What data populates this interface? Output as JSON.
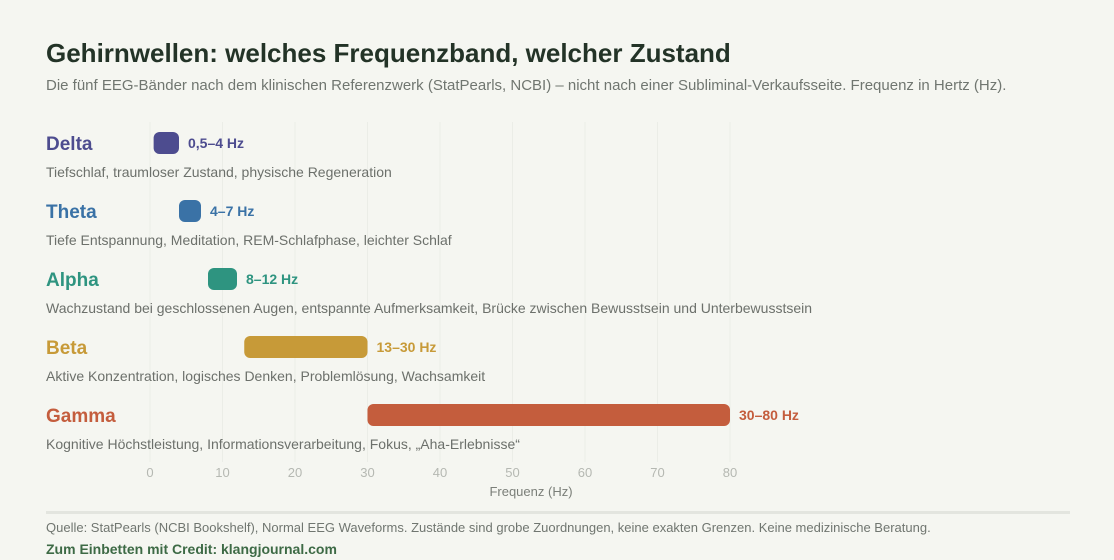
{
  "header": {
    "title": "Gehirnwellen: welches Frequenzband, welcher Zustand",
    "subtitle": "Die fünf EEG-Bänder nach dem klinischen Referenzwerk (StatPearls, NCBI) – nicht nach einer Subliminal-Verkaufsseite. Frequenz in Hertz (Hz)."
  },
  "chart_data": {
    "type": "bar",
    "orientation": "horizontal-range",
    "xlabel": "Frequenz (Hz)",
    "xlim": [
      0,
      80
    ],
    "xticks": [
      0,
      10,
      20,
      30,
      40,
      50,
      60,
      70,
      80
    ],
    "grid": true,
    "bands": [
      {
        "name": "Delta",
        "min": 0.5,
        "max": 4,
        "range_label": "0,5–4 Hz",
        "description": "Tiefschlaf, traumloser Zustand, physische Regeneration",
        "color": "#4d4c8f"
      },
      {
        "name": "Theta",
        "min": 4,
        "max": 7,
        "range_label": "4–7 Hz",
        "description": "Tiefe Entspannung, Meditation, REM-Schlafphase, leichter Schlaf",
        "color": "#3a72a6"
      },
      {
        "name": "Alpha",
        "min": 8,
        "max": 12,
        "range_label": "8–12 Hz",
        "description": "Wachzustand bei geschlossenen Augen, entspannte Aufmerksamkeit, Brücke zwischen Bewusstsein und Unterbewusstsein",
        "color": "#2e9480"
      },
      {
        "name": "Beta",
        "min": 13,
        "max": 30,
        "range_label": "13–30 Hz",
        "description": "Aktive Konzentration, logisches Denken, Problemlösung, Wachsamkeit",
        "color": "#c79a38"
      },
      {
        "name": "Gamma",
        "min": 30,
        "max": 80,
        "range_label": "30–80 Hz",
        "description": "Kognitive Höchstleistung, Informationsverarbeitung, Fokus, „Aha-Erlebnisse“",
        "color": "#c45d3d"
      }
    ]
  },
  "footer": {
    "source": "Quelle: StatPearls (NCBI Bookshelf), Normal EEG Waveforms. Zustände sind grobe Zuordnungen, keine exakten Grenzen. Keine medizinische Beratung.",
    "credit": "Zum Einbetten mit Credit: klangjournal.com"
  }
}
